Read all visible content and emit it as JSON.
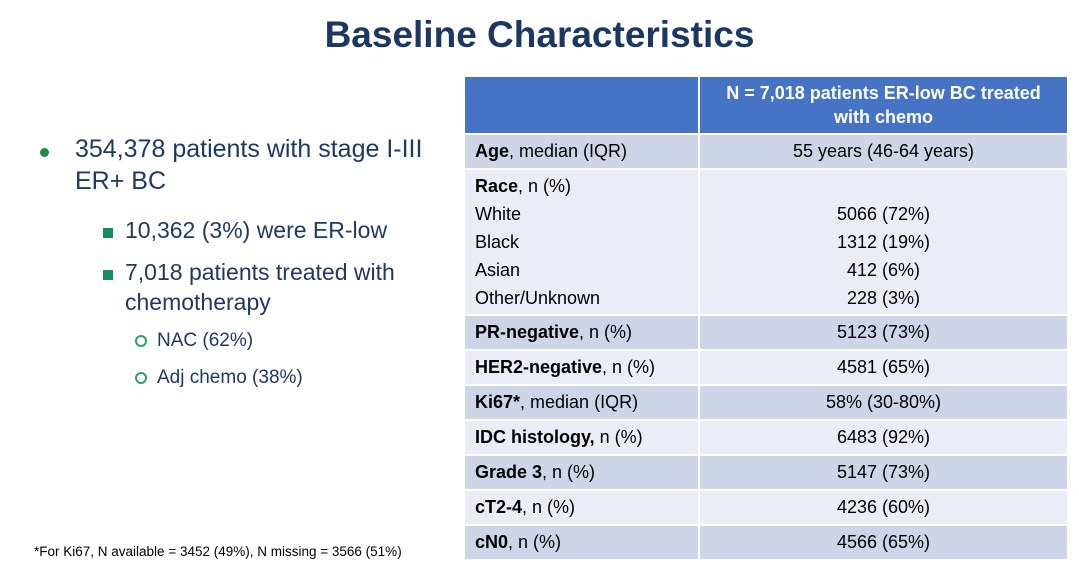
{
  "title": "Baseline Characteristics",
  "colors": {
    "header_blue": "#4573c5",
    "row_band_dark": "#cfd5e9",
    "row_band_light": "#eaecf6",
    "navy_text": "#1f3864",
    "bullet_green": "#168c60"
  },
  "bullets": {
    "level1": "354,378 patients with stage I-III ER+ BC",
    "level2": [
      "10,362 (3%) were ER-low",
      "7,018 patients treated with chemotherapy"
    ],
    "level3": [
      "NAC (62%)",
      "Adj chemo (38%)"
    ]
  },
  "table": {
    "header": "N = 7,018 patients ER-low BC treated with chemo",
    "rows": [
      {
        "b": "Age",
        "r": ", median (IQR)",
        "v": "55 years (46-64 years)"
      },
      {
        "b": "PR-negative",
        "r": ", n (%)",
        "v": "5123 (73%)"
      },
      {
        "b": "HER2-negative",
        "r": ", n (%)",
        "v": "4581 (65%)"
      },
      {
        "b": "Ki67*",
        "r": ", median (IQR)",
        "v": "58% (30-80%)"
      },
      {
        "b": "IDC histology,",
        "r": " n (%)",
        "v": "6483 (92%)"
      },
      {
        "b": "Grade 3",
        "r": ", n (%)",
        "v": "5147 (73%)"
      },
      {
        "b": "cT2-4",
        "r": ", n (%)",
        "v": "4236 (60%)"
      },
      {
        "b": "cN0",
        "r": ", n (%)",
        "v": "4566 (65%)"
      }
    ],
    "race": {
      "b": "Race",
      "r": ", n (%)",
      "items": [
        {
          "name": "White",
          "v": "5066 (72%)"
        },
        {
          "name": "Black",
          "v": "1312 (19%)"
        },
        {
          "name": "Asian",
          "v": "412 (6%)"
        },
        {
          "name": "Other/Unknown",
          "v": "228 (3%)"
        }
      ]
    }
  },
  "footnote": "*For Ki67, N available = 3452 (49%), N missing = 3566 (51%)"
}
